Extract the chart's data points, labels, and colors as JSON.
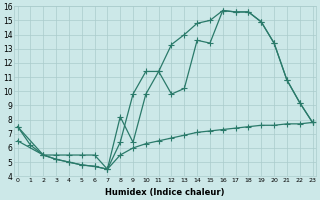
{
  "bg_color": "#cce8e8",
  "grid_color": "#aacccc",
  "line_color": "#2a7a6a",
  "xlabel": "Humidex (Indice chaleur)",
  "xlim": [
    -0.5,
    23.5
  ],
  "ylim": [
    4,
    16
  ],
  "xticks": [
    0,
    1,
    2,
    3,
    4,
    5,
    6,
    7,
    8,
    9,
    10,
    11,
    12,
    13,
    14,
    15,
    16,
    17,
    18,
    19,
    20,
    21,
    22,
    23
  ],
  "yticks": [
    4,
    5,
    6,
    7,
    8,
    9,
    10,
    11,
    12,
    13,
    14,
    15,
    16
  ],
  "line1_x": [
    0,
    1,
    2,
    3,
    4,
    5,
    6,
    7,
    8,
    9,
    10,
    11,
    12,
    13,
    14,
    15,
    16,
    17,
    18,
    19,
    20,
    21,
    22,
    23
  ],
  "line1_y": [
    7.5,
    6.2,
    5.5,
    5.2,
    5.0,
    4.8,
    4.7,
    4.5,
    8.2,
    6.4,
    9.8,
    11.4,
    13.3,
    14.0,
    14.8,
    15.0,
    15.7,
    15.6,
    15.6,
    14.9,
    13.4,
    10.8,
    9.2,
    7.8
  ],
  "line2_x": [
    0,
    2,
    3,
    4,
    5,
    6,
    7,
    8,
    9,
    10,
    11,
    12,
    13,
    14,
    15,
    16,
    17,
    18,
    19,
    20,
    21,
    22,
    23
  ],
  "line2_y": [
    7.5,
    5.5,
    5.2,
    5.0,
    4.8,
    4.7,
    4.5,
    6.4,
    9.8,
    11.4,
    11.4,
    9.8,
    10.2,
    13.6,
    13.4,
    15.7,
    15.6,
    15.6,
    14.9,
    13.4,
    10.8,
    9.2,
    7.8
  ],
  "line3_x": [
    0,
    2,
    3,
    4,
    5,
    6,
    7,
    8,
    9,
    10,
    11,
    12,
    13,
    14,
    15,
    16,
    17,
    18,
    19,
    20,
    21,
    22,
    23
  ],
  "line3_y": [
    6.5,
    5.5,
    5.5,
    5.5,
    5.5,
    5.5,
    4.5,
    5.5,
    6.0,
    6.3,
    6.5,
    6.7,
    6.9,
    7.1,
    7.2,
    7.3,
    7.4,
    7.5,
    7.6,
    7.6,
    7.7,
    7.7,
    7.8
  ]
}
